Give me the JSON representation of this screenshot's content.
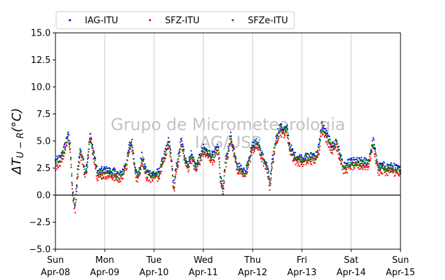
{
  "chart_data": {
    "type": "scatter",
    "ylabel": {
      "prefix": "ΔT",
      "sub": "U − R",
      "suffix": "(°C)"
    },
    "ylim": [
      -5.0,
      15.0
    ],
    "yticks": [
      -5.0,
      -2.5,
      0.0,
      2.5,
      5.0,
      7.5,
      10.0,
      12.5,
      15.0
    ],
    "ytick_labels": [
      "−5.0",
      "−2.5",
      "0.0",
      "2.5",
      "5.0",
      "7.5",
      "10.0",
      "12.5",
      "15.0"
    ],
    "xlim_days": [
      0,
      7
    ],
    "xticks": [
      {
        "day": "Sun",
        "date": "Apr-08"
      },
      {
        "day": "Mon",
        "date": "Apr-09"
      },
      {
        "day": "Tue",
        "date": "Apr-10"
      },
      {
        "day": "Wed",
        "date": "Apr-11"
      },
      {
        "day": "Thu",
        "date": "Apr-12"
      },
      {
        "day": "Fri",
        "date": "Apr-13"
      },
      {
        "day": "Sat",
        "date": "Apr-14"
      },
      {
        "day": "Sun",
        "date": "Apr-15"
      }
    ],
    "grid": "vertical",
    "reference_line_y": 0,
    "legend_position": "top",
    "watermark": [
      "Grupo de Micrometeorologia",
      "IAG/USP"
    ],
    "series": [
      {
        "name": "IAG-ITU",
        "color": "#0000ff"
      },
      {
        "name": "SFZ-ITU",
        "color": "#ff0000"
      },
      {
        "name": "SFZe-ITU",
        "color": "#008000"
      }
    ],
    "profile": {
      "x_day": [
        0,
        0.1,
        0.2,
        0.25,
        0.3,
        0.35,
        0.4,
        0.45,
        0.5,
        0.55,
        0.6,
        0.65,
        0.7,
        0.75,
        0.85,
        1.0,
        1.1,
        1.2,
        1.3,
        1.35,
        1.4,
        1.45,
        1.5,
        1.55,
        1.6,
        1.65,
        1.7,
        1.75,
        1.85,
        2.0,
        2.1,
        2.2,
        2.25,
        2.3,
        2.35,
        2.4,
        2.45,
        2.5,
        2.55,
        2.6,
        2.65,
        2.7,
        2.75,
        2.85,
        3.0,
        3.1,
        3.2,
        3.3,
        3.35,
        3.4,
        3.45,
        3.5,
        3.55,
        3.6,
        3.65,
        3.7,
        3.75,
        3.85,
        4.0,
        4.1,
        4.2,
        4.3,
        4.35,
        4.4,
        4.45,
        4.5,
        4.55,
        4.6,
        4.65,
        4.7,
        4.75,
        4.85,
        5.0,
        5.1,
        5.2,
        5.3,
        5.35,
        5.4,
        5.45,
        5.5,
        5.55,
        5.6,
        5.65,
        5.7,
        5.75,
        5.85,
        6.0,
        6.1,
        6.2,
        6.3,
        6.35,
        6.4,
        6.45,
        6.5,
        6.55,
        6.6,
        6.65,
        6.7,
        6.75,
        6.8,
        6.85,
        7.0
      ],
      "y_value": [
        3.0,
        3.3,
        4.5,
        5.6,
        4.5,
        0.0,
        -1.0,
        2.0,
        4.0,
        3.5,
        2.0,
        3.0,
        5.5,
        4.5,
        2.0,
        2.2,
        2.1,
        2.0,
        1.7,
        2.0,
        2.5,
        3.0,
        4.5,
        4.8,
        3.0,
        1.8,
        2.0,
        3.5,
        2.0,
        1.8,
        2.0,
        3.5,
        4.0,
        5.0,
        3.5,
        0.5,
        2.5,
        3.5,
        5.0,
        4.0,
        3.0,
        2.8,
        3.8,
        2.5,
        4.2,
        3.8,
        3.5,
        4.5,
        1.5,
        0.5,
        3.0,
        4.0,
        5.5,
        4.5,
        3.5,
        2.5,
        2.5,
        2.0,
        4.5,
        4.8,
        3.5,
        2.5,
        1.0,
        3.0,
        4.5,
        5.5,
        6.2,
        6.0,
        6.0,
        6.0,
        4.5,
        3.5,
        3.3,
        3.4,
        3.5,
        3.6,
        4.5,
        6.5,
        6.0,
        5.5,
        5.0,
        4.5,
        4.5,
        5.0,
        4.0,
        2.5,
        3.0,
        3.0,
        3.0,
        3.0,
        3.0,
        4.0,
        5.0,
        3.5,
        2.5,
        2.5,
        2.6,
        2.5,
        2.5,
        2.5,
        2.5,
        2.2
      ],
      "series_offsets": [
        0.15,
        -0.35,
        0.0
      ]
    }
  }
}
